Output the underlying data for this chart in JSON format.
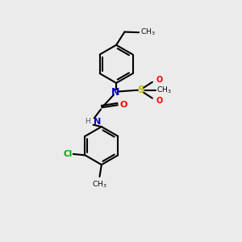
{
  "bg_color": "#ebebeb",
  "bond_color": "#000000",
  "N_color": "#0000cc",
  "O_color": "#ff0000",
  "S_color": "#bbbb00",
  "Cl_color": "#00aa00",
  "H_color": "#555555",
  "lw": 1.5,
  "font_size_atom": 8,
  "font_size_small": 6.5,
  "xlim": [
    0,
    10
  ],
  "ylim": [
    0,
    10
  ]
}
